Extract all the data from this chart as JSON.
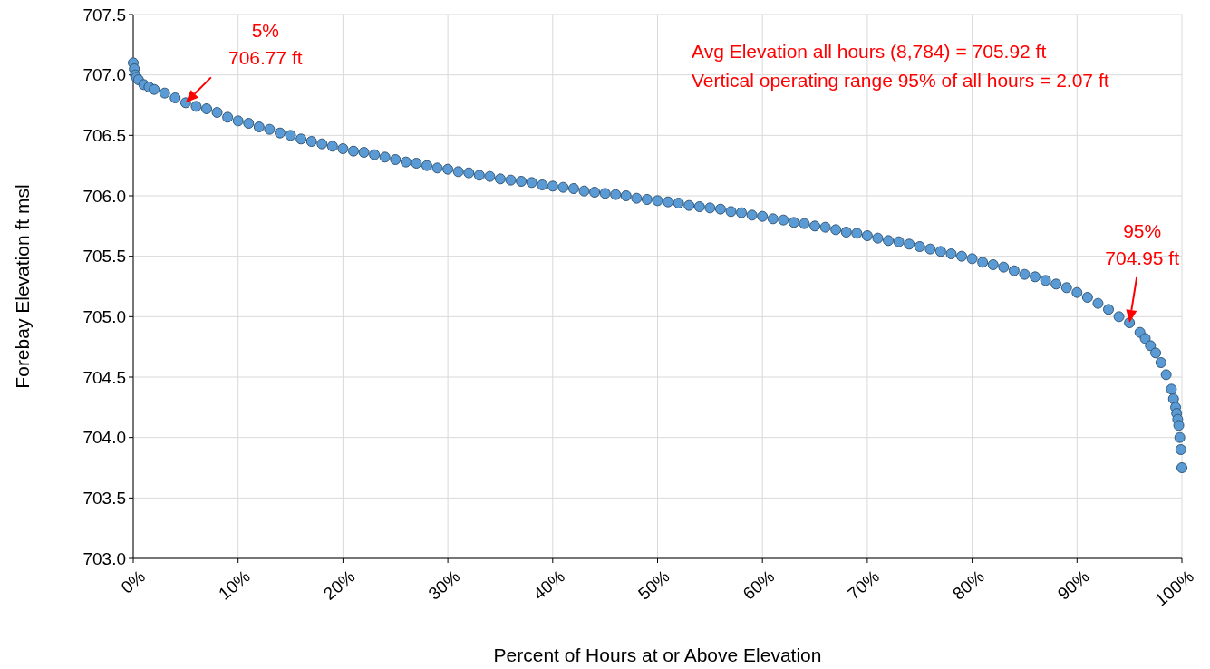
{
  "chart_data": {
    "type": "scatter",
    "xlabel": "Percent of Hours at or Above Elevation",
    "ylabel": "Forebay Elevation ft msl",
    "xlim": [
      0,
      100
    ],
    "ylim": [
      703,
      707.5
    ],
    "xticks": [
      {
        "value": 0,
        "label": "0%"
      },
      {
        "value": 10,
        "label": "10%"
      },
      {
        "value": 20,
        "label": "20%"
      },
      {
        "value": 30,
        "label": "30%"
      },
      {
        "value": 40,
        "label": "40%"
      },
      {
        "value": 50,
        "label": "50%"
      },
      {
        "value": 60,
        "label": "60%"
      },
      {
        "value": 70,
        "label": "70%"
      },
      {
        "value": 80,
        "label": "80%"
      },
      {
        "value": 90,
        "label": "90%"
      },
      {
        "value": 100,
        "label": "100%"
      }
    ],
    "yticks": [
      {
        "value": 703,
        "label": "703.0"
      },
      {
        "value": 703.5,
        "label": "703.5"
      },
      {
        "value": 704,
        "label": "704.0"
      },
      {
        "value": 704.5,
        "label": "704.5"
      },
      {
        "value": 705,
        "label": "705.0"
      },
      {
        "value": 705.5,
        "label": "705.5"
      },
      {
        "value": 706,
        "label": "706.0"
      },
      {
        "value": 706.5,
        "label": "706.5"
      },
      {
        "value": 707,
        "label": "707.0"
      },
      {
        "value": 707.5,
        "label": "707.5"
      }
    ],
    "grid": true,
    "marker": "circle",
    "series": [
      {
        "color": "#5b9bd5",
        "x": [
          0,
          0.1,
          0.2,
          0.3,
          0.5,
          1,
          1.5,
          2,
          3,
          4,
          5,
          6,
          7,
          8,
          9,
          10,
          11,
          12,
          13,
          14,
          15,
          16,
          17,
          18,
          19,
          20,
          21,
          22,
          23,
          24,
          25,
          26,
          27,
          28,
          29,
          30,
          31,
          32,
          33,
          34,
          35,
          36,
          37,
          38,
          39,
          40,
          41,
          42,
          43,
          44,
          45,
          46,
          47,
          48,
          49,
          50,
          51,
          52,
          53,
          54,
          55,
          56,
          57,
          58,
          59,
          60,
          61,
          62,
          63,
          64,
          65,
          66,
          67,
          68,
          69,
          70,
          71,
          72,
          73,
          74,
          75,
          76,
          77,
          78,
          79,
          80,
          81,
          82,
          83,
          84,
          85,
          86,
          87,
          88,
          89,
          90,
          91,
          92,
          93,
          94,
          95,
          96,
          96.5,
          97,
          97.5,
          98,
          98.5,
          99,
          99.2,
          99.4,
          99.5,
          99.6,
          99.7,
          99.8,
          99.9,
          100
        ],
        "values": [
          707.1,
          707.05,
          707.0,
          706.98,
          706.96,
          706.92,
          706.9,
          706.88,
          706.85,
          706.81,
          706.77,
          706.74,
          706.72,
          706.69,
          706.65,
          706.62,
          706.6,
          706.57,
          706.55,
          706.52,
          706.5,
          706.47,
          706.45,
          706.43,
          706.41,
          706.39,
          706.37,
          706.36,
          706.34,
          706.32,
          706.3,
          706.28,
          706.27,
          706.25,
          706.23,
          706.22,
          706.2,
          706.19,
          706.17,
          706.16,
          706.14,
          706.13,
          706.12,
          706.11,
          706.09,
          706.08,
          706.07,
          706.06,
          706.04,
          706.03,
          706.02,
          706.01,
          706.0,
          705.98,
          705.97,
          705.96,
          705.95,
          705.94,
          705.92,
          705.91,
          705.9,
          705.89,
          705.87,
          705.86,
          705.84,
          705.83,
          705.81,
          705.8,
          705.78,
          705.77,
          705.75,
          705.74,
          705.72,
          705.7,
          705.69,
          705.67,
          705.65,
          705.63,
          705.62,
          705.6,
          705.58,
          705.56,
          705.54,
          705.52,
          705.5,
          705.48,
          705.45,
          705.43,
          705.41,
          705.38,
          705.35,
          705.33,
          705.3,
          705.27,
          705.24,
          705.2,
          705.16,
          705.11,
          705.06,
          705.0,
          704.95,
          704.87,
          704.82,
          704.76,
          704.7,
          704.62,
          704.52,
          704.4,
          704.32,
          704.25,
          704.2,
          704.15,
          704.1,
          704.0,
          703.9,
          703.75
        ]
      }
    ],
    "annotations": [
      {
        "text": "5%\n706.77 ft",
        "x": 5,
        "y": 706.77
      },
      {
        "text": "95%\n704.95 ft",
        "x": 95,
        "y": 704.95
      },
      "Avg Elevation all hours (8,784) = 705.92 ft",
      "Vertical operating range 95% of all hours = 2.07 ft"
    ]
  }
}
